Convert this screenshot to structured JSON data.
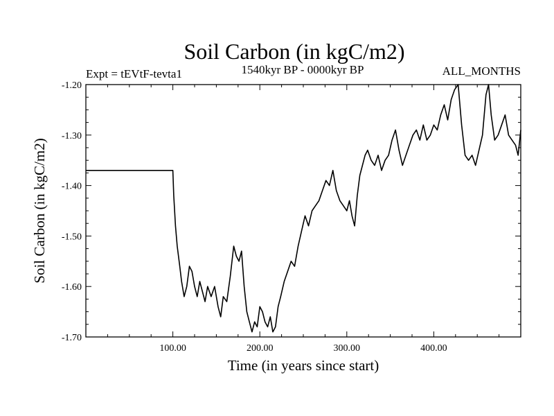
{
  "chart_data": {
    "type": "line",
    "title": "Soil Carbon (in kgC/m2)",
    "subtitle_left": "Expt = tEVtF-tevta1",
    "subtitle_center": "1540kyr BP - 0000kyr BP",
    "subtitle_right": "ALL_MONTHS",
    "xlabel": "Time (in years since start)",
    "ylabel": "Soil Carbon (in kgC/m2)",
    "xlim": [
      0,
      500
    ],
    "ylim": [
      -1.7,
      -1.2
    ],
    "x_tick_labels": [
      "100.00",
      "200.00",
      "300.00",
      "400.00"
    ],
    "x_tick_values": [
      100,
      200,
      300,
      400
    ],
    "y_tick_labels": [
      "-1.20",
      "-1.30",
      "-1.40",
      "-1.50",
      "-1.60",
      "-1.70"
    ],
    "y_tick_values": [
      -1.2,
      -1.3,
      -1.4,
      -1.5,
      -1.6,
      -1.7
    ],
    "series": [
      {
        "name": "Soil Carbon",
        "x": [
          0,
          100,
          101,
          103,
          105,
          108,
          110,
          113,
          116,
          119,
          122,
          125,
          128,
          131,
          134,
          137,
          140,
          144,
          148,
          152,
          155,
          158,
          162,
          166,
          170,
          173,
          176,
          179,
          182,
          185,
          188,
          191,
          194,
          197,
          200,
          203,
          206,
          209,
          212,
          215,
          218,
          221,
          224,
          228,
          232,
          236,
          240,
          244,
          248,
          252,
          256,
          260,
          264,
          268,
          272,
          276,
          280,
          284,
          288,
          292,
          296,
          300,
          303,
          306,
          309,
          312,
          315,
          318,
          321,
          324,
          328,
          332,
          336,
          340,
          344,
          348,
          352,
          356,
          360,
          364,
          368,
          372,
          376,
          380,
          384,
          388,
          392,
          396,
          400,
          404,
          408,
          412,
          416,
          420,
          424,
          428,
          432,
          436,
          440,
          444,
          448,
          452,
          456,
          460,
          463,
          466,
          470,
          474,
          478,
          482,
          486,
          490,
          494,
          497,
          500
        ],
        "values": [
          -1.37,
          -1.37,
          -1.42,
          -1.48,
          -1.52,
          -1.56,
          -1.59,
          -1.62,
          -1.6,
          -1.56,
          -1.57,
          -1.6,
          -1.62,
          -1.59,
          -1.61,
          -1.63,
          -1.6,
          -1.62,
          -1.6,
          -1.64,
          -1.66,
          -1.62,
          -1.63,
          -1.58,
          -1.52,
          -1.54,
          -1.55,
          -1.53,
          -1.6,
          -1.65,
          -1.67,
          -1.69,
          -1.67,
          -1.68,
          -1.64,
          -1.65,
          -1.67,
          -1.68,
          -1.66,
          -1.69,
          -1.68,
          -1.64,
          -1.62,
          -1.59,
          -1.57,
          -1.55,
          -1.56,
          -1.52,
          -1.49,
          -1.46,
          -1.48,
          -1.45,
          -1.44,
          -1.43,
          -1.41,
          -1.39,
          -1.4,
          -1.37,
          -1.41,
          -1.43,
          -1.44,
          -1.45,
          -1.43,
          -1.46,
          -1.48,
          -1.42,
          -1.38,
          -1.36,
          -1.34,
          -1.33,
          -1.35,
          -1.36,
          -1.34,
          -1.37,
          -1.35,
          -1.34,
          -1.31,
          -1.29,
          -1.33,
          -1.36,
          -1.34,
          -1.32,
          -1.3,
          -1.29,
          -1.31,
          -1.28,
          -1.31,
          -1.3,
          -1.28,
          -1.29,
          -1.26,
          -1.24,
          -1.27,
          -1.23,
          -1.21,
          -1.2,
          -1.28,
          -1.34,
          -1.35,
          -1.34,
          -1.36,
          -1.33,
          -1.3,
          -1.22,
          -1.2,
          -1.26,
          -1.31,
          -1.3,
          -1.28,
          -1.26,
          -1.3,
          -1.31,
          -1.32,
          -1.34,
          -1.29
        ]
      }
    ]
  }
}
